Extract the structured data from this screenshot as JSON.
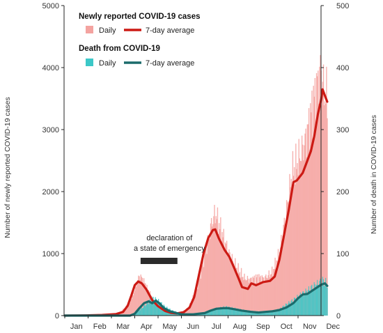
{
  "chart_data": {
    "type": "bar",
    "left_axis": {
      "label": "Number of newly reported COVID-19 cases",
      "ylim": [
        0,
        5000
      ],
      "ticks": [
        0,
        1000,
        2000,
        3000,
        4000,
        5000
      ]
    },
    "right_axis": {
      "label": "Number of death in COVID-19 cases",
      "ylim": [
        0,
        500
      ],
      "ticks": [
        0,
        100,
        200,
        300,
        400,
        500
      ]
    },
    "x_axis": {
      "months": [
        "Jan",
        "Feb",
        "Mar",
        "Apr",
        "May",
        "Jun",
        "Jul",
        "Aug",
        "Sep",
        "Oct",
        "Nov",
        "Dec"
      ]
    },
    "grid": false,
    "legend": {
      "position": "top-left",
      "groups": [
        {
          "heading": "Newly reported COVID-19 cases",
          "daily_label": "Daily",
          "avg_label": "7-day average",
          "daily_color": "#f4a3a0",
          "avg_color": "#cc1a14"
        },
        {
          "heading": "Death from COVID-19",
          "daily_label": "Daily",
          "avg_label": "7-day average",
          "daily_color": "#3cc8c8",
          "avg_color": "#1b6b6b"
        }
      ]
    },
    "annotation": {
      "text_line1": "declaration of",
      "text_line2": "a state of emergency",
      "start_month": 3.25,
      "end_month": 4.83
    },
    "series": [
      {
        "name": "Newly reported COVID-19 cases",
        "axis": "left",
        "daily_points": [
          [
            0,
            0
          ],
          [
            0.9,
            3
          ],
          [
            1.7,
            12
          ],
          [
            2.3,
            35
          ],
          [
            2.75,
            180
          ],
          [
            3.0,
            420
          ],
          [
            3.2,
            650
          ],
          [
            3.35,
            580
          ],
          [
            3.55,
            420
          ],
          [
            3.85,
            220
          ],
          [
            4.1,
            120
          ],
          [
            4.4,
            50
          ],
          [
            4.7,
            30
          ],
          [
            5.0,
            50
          ],
          [
            5.3,
            120
          ],
          [
            5.7,
            500
          ],
          [
            6.0,
            1000
          ],
          [
            6.3,
            1500
          ],
          [
            6.45,
            1650
          ],
          [
            6.6,
            1480
          ],
          [
            6.85,
            1200
          ],
          [
            7.1,
            950
          ],
          [
            7.4,
            750
          ],
          [
            7.7,
            600
          ],
          [
            7.95,
            580
          ],
          [
            8.25,
            620
          ],
          [
            8.55,
            600
          ],
          [
            8.9,
            700
          ],
          [
            9.2,
            1000
          ],
          [
            9.5,
            1700
          ],
          [
            9.75,
            2300
          ],
          [
            10.0,
            2500
          ],
          [
            10.3,
            2800
          ],
          [
            10.6,
            3350
          ],
          [
            10.85,
            3800
          ],
          [
            11.0,
            4000
          ],
          [
            11.1,
            3600
          ],
          [
            11.25,
            3500
          ]
        ],
        "avg_points": [
          [
            0,
            0
          ],
          [
            0.9,
            3
          ],
          [
            1.6,
            10
          ],
          [
            2.2,
            25
          ],
          [
            2.5,
            60
          ],
          [
            2.7,
            160
          ],
          [
            2.85,
            320
          ],
          [
            3.0,
            490
          ],
          [
            3.15,
            550
          ],
          [
            3.3,
            520
          ],
          [
            3.5,
            420
          ],
          [
            3.75,
            250
          ],
          [
            4.0,
            150
          ],
          [
            4.3,
            75
          ],
          [
            4.55,
            45
          ],
          [
            4.8,
            35
          ],
          [
            5.1,
            55
          ],
          [
            5.35,
            130
          ],
          [
            5.55,
            300
          ],
          [
            5.75,
            650
          ],
          [
            5.95,
            1000
          ],
          [
            6.15,
            1250
          ],
          [
            6.35,
            1380
          ],
          [
            6.45,
            1390
          ],
          [
            6.6,
            1250
          ],
          [
            6.85,
            1060
          ],
          [
            7.05,
            950
          ],
          [
            7.25,
            780
          ],
          [
            7.45,
            600
          ],
          [
            7.6,
            460
          ],
          [
            7.85,
            430
          ],
          [
            8.0,
            520
          ],
          [
            8.2,
            490
          ],
          [
            8.5,
            540
          ],
          [
            8.8,
            560
          ],
          [
            9.0,
            630
          ],
          [
            9.2,
            900
          ],
          [
            9.4,
            1300
          ],
          [
            9.6,
            1700
          ],
          [
            9.8,
            2150
          ],
          [
            9.95,
            2180
          ],
          [
            10.2,
            2300
          ],
          [
            10.4,
            2500
          ],
          [
            10.55,
            2650
          ],
          [
            10.7,
            2900
          ],
          [
            10.85,
            3250
          ],
          [
            11.0,
            3500
          ],
          [
            11.05,
            3650
          ],
          [
            11.15,
            3550
          ],
          [
            11.25,
            3450
          ]
        ]
      },
      {
        "name": "Death from COVID-19",
        "axis": "right",
        "daily_points": [
          [
            0,
            0
          ],
          [
            2.8,
            0
          ],
          [
            3.0,
            4
          ],
          [
            3.3,
            12
          ],
          [
            3.6,
            22
          ],
          [
            3.8,
            28
          ],
          [
            4.0,
            24
          ],
          [
            4.3,
            14
          ],
          [
            4.6,
            8
          ],
          [
            5.0,
            3
          ],
          [
            5.5,
            2
          ],
          [
            6.0,
            4
          ],
          [
            6.3,
            8
          ],
          [
            6.6,
            12
          ],
          [
            6.9,
            14
          ],
          [
            7.2,
            12
          ],
          [
            7.6,
            9
          ],
          [
            8.0,
            7
          ],
          [
            8.4,
            6
          ],
          [
            8.8,
            7
          ],
          [
            9.2,
            10
          ],
          [
            9.5,
            18
          ],
          [
            9.8,
            25
          ],
          [
            10.1,
            33
          ],
          [
            10.4,
            40
          ],
          [
            10.7,
            48
          ],
          [
            10.9,
            52
          ],
          [
            11.05,
            56
          ],
          [
            11.25,
            52
          ]
        ],
        "avg_points": [
          [
            0,
            0
          ],
          [
            2.8,
            0
          ],
          [
            3.0,
            3
          ],
          [
            3.2,
            12
          ],
          [
            3.4,
            20
          ],
          [
            3.6,
            23
          ],
          [
            3.75,
            20
          ],
          [
            3.9,
            24
          ],
          [
            4.05,
            20
          ],
          [
            4.25,
            12
          ],
          [
            4.5,
            7
          ],
          [
            4.8,
            4
          ],
          [
            5.0,
            2
          ],
          [
            5.5,
            2
          ],
          [
            6.0,
            4
          ],
          [
            6.25,
            8
          ],
          [
            6.5,
            11
          ],
          [
            6.8,
            12
          ],
          [
            7.0,
            12
          ],
          [
            7.3,
            10
          ],
          [
            7.6,
            8
          ],
          [
            8.0,
            6
          ],
          [
            8.3,
            5
          ],
          [
            8.6,
            6
          ],
          [
            8.9,
            7
          ],
          [
            9.2,
            9
          ],
          [
            9.5,
            13
          ],
          [
            9.8,
            20
          ],
          [
            10.0,
            28
          ],
          [
            10.2,
            34
          ],
          [
            10.4,
            35
          ],
          [
            10.6,
            40
          ],
          [
            10.8,
            45
          ],
          [
            11.0,
            50
          ],
          [
            11.15,
            52
          ],
          [
            11.25,
            48
          ]
        ]
      }
    ]
  }
}
